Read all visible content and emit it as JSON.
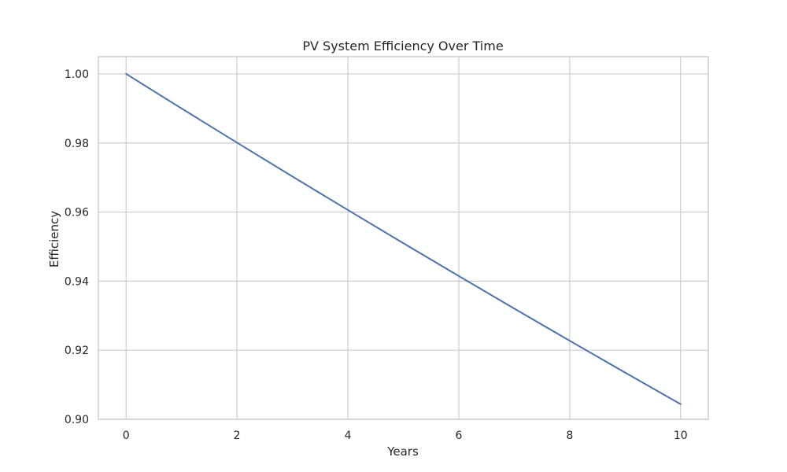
{
  "chart_data": {
    "type": "line",
    "title": "PV System Efficiency Over Time",
    "xlabel": "Years",
    "ylabel": "Efficiency",
    "xlim": [
      -0.5,
      10.5
    ],
    "ylim": [
      0.9,
      1.005
    ],
    "xticks": [
      0,
      2,
      4,
      6,
      8,
      10
    ],
    "yticks": [
      0.9,
      0.92,
      0.94,
      0.96,
      0.98,
      1.0
    ],
    "grid": true,
    "legend": "none",
    "series": [
      {
        "color": "#4c72b0",
        "x": [
          0,
          1,
          2,
          3,
          4,
          5,
          6,
          7,
          8,
          9,
          10
        ],
        "y": [
          1.0,
          0.99,
          0.9801,
          0.970299,
          0.960596,
          0.95099,
          0.94148,
          0.932065,
          0.922745,
          0.913517,
          0.904382
        ]
      }
    ]
  }
}
